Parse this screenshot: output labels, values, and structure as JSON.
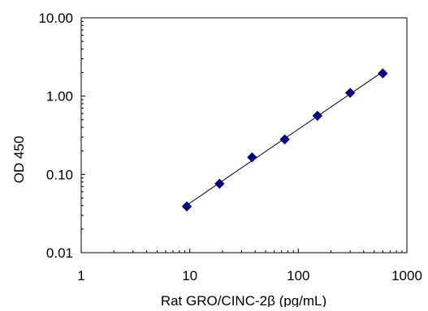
{
  "chart_data": {
    "type": "scatter",
    "title": "",
    "xlabel": "Rat GRO/CINC-2β (pg/mL)",
    "ylabel": "OD 450",
    "x_scale": "log",
    "y_scale": "log",
    "xlim": [
      1,
      1000
    ],
    "ylim": [
      0.01,
      10
    ],
    "x_ticks": [
      {
        "value": 1,
        "label": "1"
      },
      {
        "value": 10,
        "label": "10"
      },
      {
        "value": 100,
        "label": "100"
      },
      {
        "value": 1000,
        "label": "1000"
      }
    ],
    "y_ticks": [
      {
        "value": 0.01,
        "label": "0.01"
      },
      {
        "value": 0.1,
        "label": "0.10"
      },
      {
        "value": 1,
        "label": "1.00"
      },
      {
        "value": 10,
        "label": "10.00"
      }
    ],
    "grid": false,
    "legend": false,
    "series": [
      {
        "marker": "diamond",
        "color": "#000080",
        "trendline": "power",
        "x": [
          9.4,
          18.8,
          37.5,
          75,
          150,
          300,
          600
        ],
        "y": [
          0.039,
          0.076,
          0.165,
          0.28,
          0.56,
          1.1,
          1.95
        ]
      }
    ],
    "trendline_color": "#000000"
  }
}
